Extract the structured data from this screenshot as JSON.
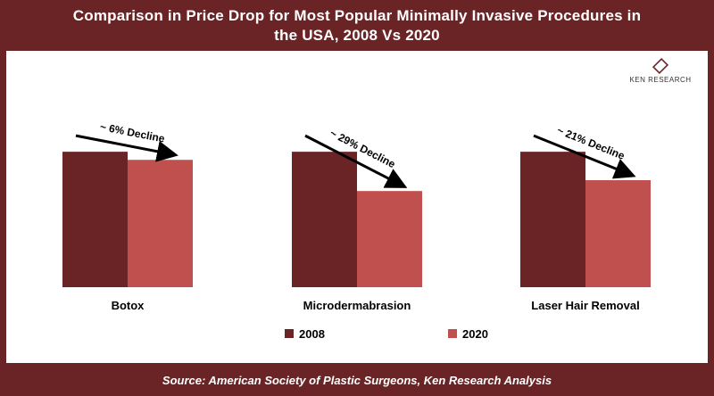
{
  "header": {
    "title_line1": "Comparison in Price Drop for Most Popular Minimally Invasive Procedures in",
    "title_line2": "the USA, 2008 Vs 2020"
  },
  "logo": {
    "text": "KEN RESEARCH",
    "icon": "ken-research-logo"
  },
  "footer": {
    "source": "Source: American Society of Plastic Surgeons, Ken Research Analysis"
  },
  "colors": {
    "series_2008": "#6b2426",
    "series_2020": "#c0504d",
    "frame": "#6b2426"
  },
  "chart_data": {
    "type": "bar",
    "categories": [
      "Botox",
      "Microdermabrasion",
      "Laser Hair Removal"
    ],
    "series": [
      {
        "name": "2008",
        "values": [
          100,
          100,
          100
        ]
      },
      {
        "name": "2020",
        "values": [
          94,
          71,
          79
        ]
      }
    ],
    "annotations": [
      "~ 6% Decline",
      "~ 29% Decline",
      "~ 21% Decline"
    ],
    "ylim": [
      0,
      110
    ],
    "legend": "bottom",
    "grid": false
  }
}
